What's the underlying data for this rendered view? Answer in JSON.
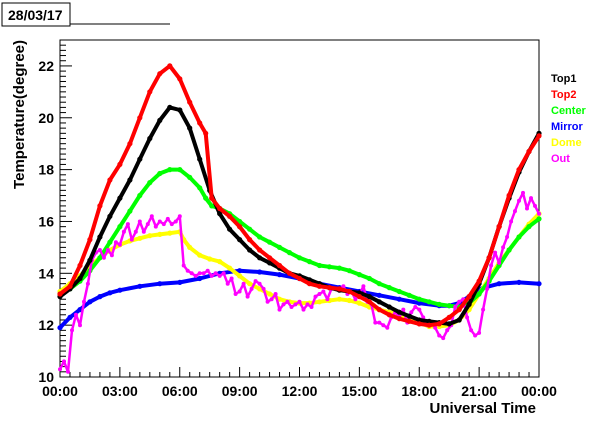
{
  "chart_data": {
    "type": "scatter",
    "title": "28/03/17",
    "xlabel": "Universal Time",
    "ylabel": "Temperature(degree)",
    "xlim": [
      0,
      24
    ],
    "ylim": [
      10,
      23
    ],
    "x_ticks": [
      {
        "value": 0,
        "label": "00:00"
      },
      {
        "value": 3,
        "label": "03:00"
      },
      {
        "value": 6,
        "label": "06:00"
      },
      {
        "value": 9,
        "label": "09:00"
      },
      {
        "value": 12,
        "label": "12:00"
      },
      {
        "value": 15,
        "label": "15:00"
      },
      {
        "value": 18,
        "label": "18:00"
      },
      {
        "value": 21,
        "label": "21:00"
      },
      {
        "value": 24,
        "label": "00:00"
      }
    ],
    "y_ticks": [
      {
        "value": 10,
        "label": "10"
      },
      {
        "value": 12,
        "label": "12"
      },
      {
        "value": 14,
        "label": "14"
      },
      {
        "value": 16,
        "label": "16"
      },
      {
        "value": 18,
        "label": "18"
      },
      {
        "value": 20,
        "label": "20"
      },
      {
        "value": 22,
        "label": "22"
      }
    ],
    "grid": false,
    "legend_position": "right",
    "series": [
      {
        "name": "Mirror",
        "color": "#0000ff",
        "x": [
          0,
          0.5,
          1,
          1.5,
          2,
          2.5,
          3,
          4,
          5,
          6,
          7,
          8,
          9,
          10,
          11,
          12,
          13,
          14,
          15,
          16,
          17,
          18,
          19,
          19.5,
          20,
          20.5,
          21,
          22,
          23,
          24
        ],
        "y": [
          11.9,
          12.3,
          12.6,
          12.9,
          13.1,
          13.25,
          13.35,
          13.5,
          13.6,
          13.65,
          13.8,
          14.0,
          14.1,
          14.05,
          13.95,
          13.8,
          13.6,
          13.45,
          13.3,
          13.15,
          13.0,
          12.85,
          12.75,
          12.75,
          12.85,
          13.1,
          13.4,
          13.6,
          13.65,
          13.6
        ]
      },
      {
        "name": "Dome",
        "color": "#ffff00",
        "x": [
          0,
          0.5,
          1,
          1.5,
          2,
          2.5,
          3,
          3.5,
          4,
          4.5,
          5,
          5.5,
          6,
          6.2,
          6.5,
          7,
          7.5,
          8,
          8.5,
          9,
          9.5,
          10,
          10.5,
          11,
          11.5,
          12,
          12.5,
          13,
          13.5,
          14,
          14.5,
          15,
          15.5,
          16,
          16.5,
          17,
          17.5,
          18,
          18.5,
          19,
          19.5,
          20,
          20.5,
          21,
          21.5,
          22,
          22.5,
          23,
          23.5,
          24
        ],
        "y": [
          13.3,
          13.6,
          13.9,
          14.3,
          14.6,
          14.9,
          15.1,
          15.25,
          15.35,
          15.45,
          15.5,
          15.55,
          15.6,
          15.3,
          15.0,
          14.7,
          14.55,
          14.45,
          14.2,
          13.9,
          13.6,
          13.4,
          13.2,
          13.0,
          12.9,
          12.85,
          12.85,
          12.9,
          12.95,
          13.0,
          12.95,
          12.85,
          12.7,
          12.6,
          12.5,
          12.4,
          12.3,
          12.1,
          11.95,
          11.95,
          12.0,
          12.2,
          12.6,
          13.2,
          13.8,
          14.4,
          14.9,
          15.4,
          15.9,
          16.3
        ]
      },
      {
        "name": "Center",
        "color": "#00ff00",
        "x": [
          0,
          0.5,
          1,
          1.5,
          2,
          2.5,
          3,
          3.5,
          4,
          4.5,
          5,
          5.5,
          6,
          6.5,
          7,
          7.3,
          7.6,
          8,
          8.5,
          9,
          9.5,
          10,
          10.5,
          11,
          11.5,
          12,
          12.5,
          13,
          13.5,
          14,
          14.5,
          15,
          15.5,
          16,
          16.5,
          17,
          17.5,
          18,
          18.5,
          19,
          19.5,
          20,
          20.5,
          21,
          21.5,
          22,
          22.5,
          23,
          23.5,
          24
        ],
        "y": [
          13.2,
          13.4,
          13.7,
          14.1,
          14.6,
          15.2,
          15.8,
          16.4,
          17.0,
          17.5,
          17.85,
          18.0,
          18.0,
          17.7,
          17.3,
          16.9,
          16.6,
          16.5,
          16.3,
          16.0,
          15.7,
          15.4,
          15.2,
          15.0,
          14.8,
          14.6,
          14.45,
          14.3,
          14.25,
          14.2,
          14.1,
          13.95,
          13.8,
          13.6,
          13.45,
          13.3,
          13.15,
          13.0,
          12.9,
          12.8,
          12.75,
          12.7,
          12.85,
          13.2,
          13.7,
          14.3,
          14.9,
          15.4,
          15.8,
          16.1
        ]
      },
      {
        "name": "Out",
        "color": "#ff00ff",
        "x": [
          0,
          0.2,
          0.4,
          0.6,
          0.8,
          1.0,
          1.2,
          1.4,
          1.6,
          1.8,
          2.0,
          2.2,
          2.4,
          2.6,
          2.8,
          3.0,
          3.2,
          3.4,
          3.6,
          3.8,
          4.0,
          4.2,
          4.4,
          4.6,
          4.8,
          5.0,
          5.2,
          5.4,
          5.6,
          5.8,
          6.0,
          6.2,
          6.4,
          6.6,
          6.8,
          7.0,
          7.2,
          7.4,
          7.6,
          7.8,
          8.0,
          8.2,
          8.4,
          8.6,
          8.8,
          9.0,
          9.2,
          9.4,
          9.6,
          9.8,
          10.0,
          10.2,
          10.4,
          10.6,
          10.8,
          11.0,
          11.2,
          11.4,
          11.6,
          11.8,
          12.0,
          12.2,
          12.4,
          12.6,
          12.8,
          13.0,
          13.2,
          13.4,
          13.6,
          13.8,
          14.0,
          14.2,
          14.4,
          14.6,
          14.8,
          15.0,
          15.2,
          15.4,
          15.6,
          15.8,
          16.0,
          16.2,
          16.4,
          16.6,
          16.8,
          17.0,
          17.2,
          17.4,
          17.6,
          17.8,
          18.0,
          18.2,
          18.4,
          18.6,
          18.8,
          19.0,
          19.2,
          19.4,
          19.6,
          19.8,
          20.0,
          20.2,
          20.4,
          20.6,
          20.8,
          21.0,
          21.2,
          21.4,
          21.6,
          21.8,
          22.0,
          22.2,
          22.4,
          22.6,
          22.8,
          23.0,
          23.2,
          23.4,
          23.6,
          23.8,
          24.0
        ],
        "y": [
          10.3,
          10.6,
          10.2,
          11.8,
          12.4,
          12.0,
          12.9,
          13.6,
          14.5,
          14.8,
          14.9,
          14.6,
          14.9,
          14.7,
          15.2,
          15.1,
          15.6,
          15.9,
          15.3,
          15.6,
          16.0,
          15.6,
          15.9,
          16.2,
          15.8,
          16.0,
          15.9,
          16.1,
          15.9,
          16.0,
          16.2,
          14.3,
          14.1,
          14.0,
          13.9,
          14.0,
          14.0,
          14.1,
          13.9,
          14.0,
          13.9,
          14.0,
          13.6,
          13.8,
          13.2,
          13.3,
          13.6,
          13.1,
          13.4,
          13.7,
          13.6,
          13.4,
          12.9,
          13.0,
          13.2,
          12.6,
          12.8,
          12.9,
          12.7,
          12.8,
          12.9,
          12.6,
          12.8,
          12.7,
          13.1,
          13.2,
          13.3,
          13.0,
          13.4,
          13.4,
          13.4,
          13.5,
          13.2,
          13.3,
          13.0,
          13.2,
          13.5,
          12.9,
          12.8,
          12.1,
          12.1,
          12.0,
          11.9,
          12.3,
          12.5,
          12.3,
          12.6,
          12.1,
          12.5,
          12.7,
          12.6,
          12.3,
          12.0,
          12.1,
          11.9,
          11.6,
          11.5,
          11.8,
          12.0,
          12.7,
          12.9,
          13.0,
          12.3,
          11.8,
          11.6,
          11.7,
          12.6,
          13.4,
          14.3,
          14.8,
          14.4,
          15.0,
          15.4,
          16.0,
          16.4,
          16.8,
          17.1,
          16.5,
          16.9,
          16.6,
          16.3
        ]
      },
      {
        "name": "Top1",
        "color": "#000000",
        "x": [
          0,
          0.5,
          1,
          1.5,
          2,
          2.5,
          3,
          3.5,
          4,
          4.5,
          5,
          5.5,
          6,
          6.5,
          7,
          7.5,
          8,
          8.5,
          9,
          9.5,
          10,
          10.5,
          11,
          11.5,
          12,
          12.5,
          13,
          13.5,
          14,
          14.5,
          15,
          15.5,
          16,
          16.5,
          17,
          17.5,
          18,
          18.5,
          19,
          19.5,
          20,
          20.5,
          21,
          21.5,
          22,
          22.5,
          23,
          23.5,
          24
        ],
        "y": [
          13.1,
          13.4,
          13.8,
          14.5,
          15.4,
          16.2,
          16.9,
          17.6,
          18.4,
          19.2,
          19.9,
          20.4,
          20.3,
          19.6,
          18.4,
          17.2,
          16.3,
          15.7,
          15.3,
          14.9,
          14.6,
          14.4,
          14.2,
          14.0,
          13.9,
          13.75,
          13.6,
          13.45,
          13.35,
          13.3,
          13.25,
          13.1,
          12.9,
          12.7,
          12.5,
          12.35,
          12.2,
          12.15,
          12.1,
          12.05,
          12.2,
          12.8,
          13.6,
          14.6,
          15.8,
          16.9,
          17.9,
          18.7,
          19.4
        ]
      },
      {
        "name": "Top2",
        "color": "#ff0000",
        "x": [
          0,
          0.5,
          1,
          1.5,
          2,
          2.5,
          3,
          3.5,
          4,
          4.5,
          5,
          5.5,
          6,
          6.5,
          7,
          7.3,
          7.6,
          8,
          8.5,
          9,
          9.5,
          10,
          10.5,
          11,
          11.5,
          12,
          12.5,
          13,
          13.5,
          14,
          14.5,
          15,
          15.5,
          16,
          16.5,
          17,
          17.5,
          18,
          18.5,
          19,
          19.5,
          20,
          20.5,
          21,
          21.5,
          22,
          22.5,
          23,
          23.5,
          24
        ],
        "y": [
          13.2,
          13.5,
          14.3,
          15.3,
          16.6,
          17.6,
          18.2,
          19.0,
          20.0,
          21.0,
          21.7,
          22.0,
          21.5,
          20.6,
          19.8,
          19.4,
          16.9,
          16.5,
          16.2,
          15.8,
          15.3,
          14.9,
          14.6,
          14.3,
          14.0,
          13.8,
          13.6,
          13.5,
          13.45,
          13.4,
          13.3,
          13.1,
          12.9,
          12.6,
          12.4,
          12.25,
          12.15,
          12.05,
          12.0,
          12.05,
          12.3,
          12.6,
          13.1,
          13.7,
          14.6,
          15.8,
          17.0,
          18.0,
          18.7,
          19.3
        ]
      }
    ]
  }
}
